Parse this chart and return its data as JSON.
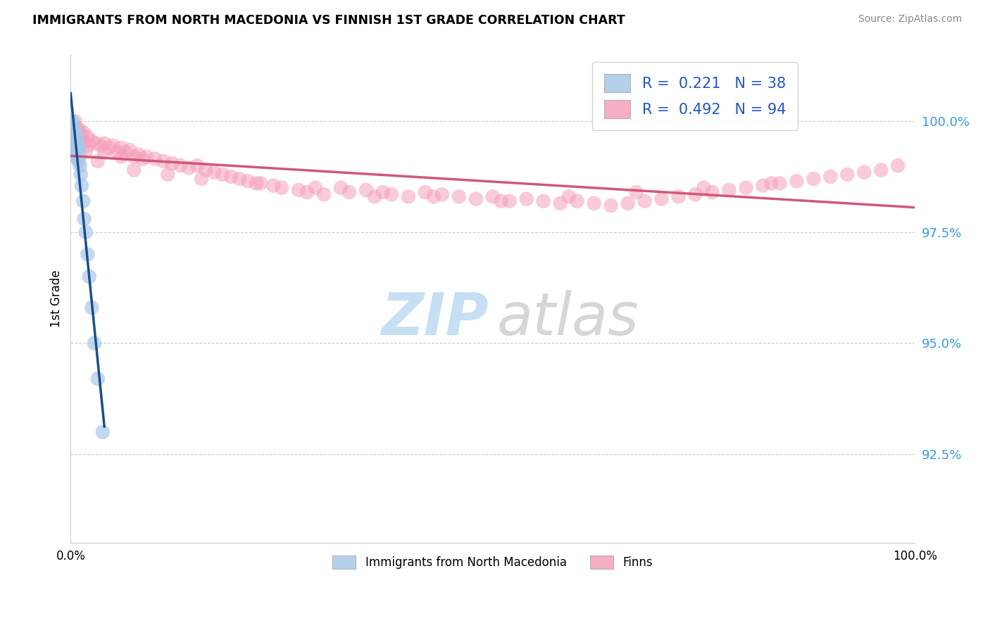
{
  "title": "IMMIGRANTS FROM NORTH MACEDONIA VS FINNISH 1ST GRADE CORRELATION CHART",
  "source": "Source: ZipAtlas.com",
  "ylabel": "1st Grade",
  "yticks": [
    92.5,
    95.0,
    97.5,
    100.0
  ],
  "ytick_labels": [
    "92.5%",
    "95.0%",
    "97.5%",
    "100.0%"
  ],
  "xlim": [
    0.0,
    100.0
  ],
  "ylim": [
    90.5,
    101.5
  ],
  "blue_color": "#a8c8e8",
  "pink_color": "#f5a0b8",
  "blue_line_color": "#1a4e8c",
  "pink_line_color": "#d05878",
  "blue_r": 0.221,
  "blue_n": 38,
  "pink_r": 0.492,
  "pink_n": 94,
  "blue_x": [
    0.1,
    0.15,
    0.2,
    0.2,
    0.25,
    0.3,
    0.3,
    0.35,
    0.4,
    0.4,
    0.45,
    0.5,
    0.5,
    0.55,
    0.6,
    0.6,
    0.65,
    0.7,
    0.7,
    0.75,
    0.8,
    0.8,
    0.85,
    0.9,
    0.95,
    1.0,
    1.1,
    1.2,
    1.3,
    1.5,
    1.6,
    1.8,
    2.0,
    2.2,
    2.5,
    2.8,
    3.2,
    3.8
  ],
  "blue_y": [
    99.95,
    99.9,
    100.0,
    99.7,
    99.85,
    99.9,
    99.6,
    99.8,
    99.8,
    99.5,
    99.7,
    99.75,
    99.45,
    99.65,
    99.7,
    99.35,
    99.55,
    99.6,
    99.25,
    99.5,
    99.5,
    99.15,
    99.4,
    99.35,
    99.1,
    99.25,
    99.0,
    98.8,
    98.55,
    98.2,
    97.8,
    97.5,
    97.0,
    96.5,
    95.8,
    95.0,
    94.2,
    93.0
  ],
  "pink_x": [
    0.3,
    0.5,
    0.5,
    0.8,
    1.0,
    1.0,
    1.2,
    1.5,
    1.5,
    2.0,
    2.0,
    2.5,
    3.0,
    3.5,
    4.0,
    4.0,
    4.5,
    5.0,
    5.5,
    6.0,
    6.0,
    6.5,
    7.0,
    7.5,
    8.0,
    8.5,
    9.0,
    10.0,
    11.0,
    12.0,
    13.0,
    14.0,
    15.0,
    16.0,
    17.0,
    18.0,
    19.0,
    20.0,
    21.0,
    22.0,
    24.0,
    25.0,
    27.0,
    28.0,
    30.0,
    32.0,
    33.0,
    35.0,
    36.0,
    38.0,
    40.0,
    42.0,
    44.0,
    46.0,
    48.0,
    50.0,
    52.0,
    54.0,
    56.0,
    58.0,
    60.0,
    62.0,
    64.0,
    66.0,
    68.0,
    70.0,
    72.0,
    74.0,
    76.0,
    78.0,
    80.0,
    82.0,
    84.0,
    86.0,
    88.0,
    90.0,
    92.0,
    94.0,
    96.0,
    98.0,
    1.8,
    3.2,
    7.5,
    11.5,
    15.5,
    22.5,
    29.0,
    37.0,
    43.0,
    51.0,
    59.0,
    67.0,
    75.0,
    83.0
  ],
  "pink_y": [
    99.9,
    100.0,
    99.75,
    99.85,
    99.8,
    99.6,
    99.7,
    99.75,
    99.55,
    99.65,
    99.45,
    99.55,
    99.5,
    99.45,
    99.5,
    99.3,
    99.4,
    99.45,
    99.3,
    99.4,
    99.2,
    99.3,
    99.35,
    99.2,
    99.25,
    99.15,
    99.2,
    99.15,
    99.1,
    99.05,
    99.0,
    98.95,
    99.0,
    98.9,
    98.85,
    98.8,
    98.75,
    98.7,
    98.65,
    98.6,
    98.55,
    98.5,
    98.45,
    98.4,
    98.35,
    98.5,
    98.4,
    98.45,
    98.3,
    98.35,
    98.3,
    98.4,
    98.35,
    98.3,
    98.25,
    98.3,
    98.2,
    98.25,
    98.2,
    98.15,
    98.2,
    98.15,
    98.1,
    98.15,
    98.2,
    98.25,
    98.3,
    98.35,
    98.4,
    98.45,
    98.5,
    98.55,
    98.6,
    98.65,
    98.7,
    98.75,
    98.8,
    98.85,
    98.9,
    99.0,
    99.3,
    99.1,
    98.9,
    98.8,
    98.7,
    98.6,
    98.5,
    98.4,
    98.3,
    98.2,
    98.3,
    98.4,
    98.5,
    98.6
  ]
}
